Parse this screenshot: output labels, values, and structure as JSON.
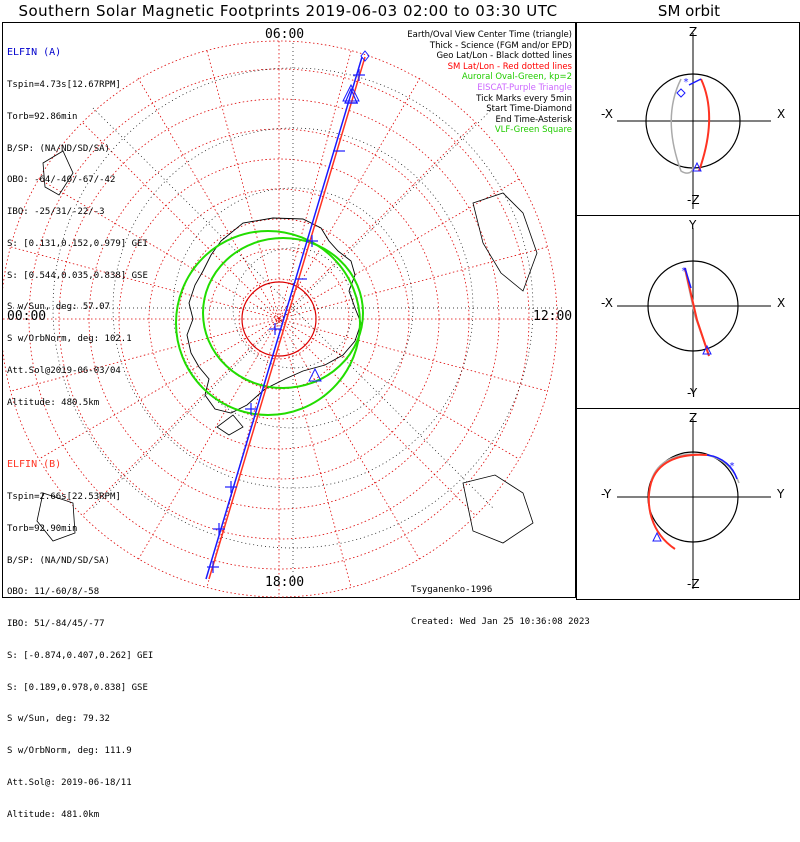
{
  "title": "Southern Solar Magnetic Footprints 2019-06-03 02:00 to 03:30 UTC",
  "sm_orbit_title": "SM orbit",
  "colors": {
    "elfin_a": "#0000cc",
    "elfin_b": "#ff3322",
    "oval": "#22dd00",
    "grid": "#dd0000",
    "purple": "#cc66ff",
    "text": "#000000"
  },
  "polar_labels": {
    "top": "06:00",
    "bottom": "18:00",
    "left": "00:00",
    "right": "12:00"
  },
  "elfin_a": {
    "name": "ELFIN (A)",
    "lines": [
      "Tspin=4.73s[12.67RPM]",
      "Torb=92.86min",
      "B/SP: (NA/ND/SD/SA)",
      "OBO: -64/-40/-67/-42",
      "IBO: -25/31/-22/-3",
      "S: [0.131,0.152,0.979] GEI",
      "S: [0.544,0.035,0.838] GSE",
      "S w/Sun, deg: 57.07",
      "S w/OrbNorm, deg: 102.1",
      "Att.Sol@2019-06-03/04",
      "Altitude: 480.5km"
    ]
  },
  "elfin_b": {
    "name": "ELFIN (B)",
    "lines": [
      "Tspin=2.66s[22.53RPM]",
      "Torb=92.90min",
      "B/SP: (NA/ND/SD/SA)",
      "OBO: 11/-60/8/-58",
      "IBO: 51/-84/45/-77",
      "S: [-0.874,0.407,0.262] GEI",
      "S: [0.189,0.978,0.838] GSE",
      "S w/Sun, deg: 79.32",
      "S w/OrbNorm, deg: 111.9",
      "Att.Sol@: 2019-06-18/11",
      "Altitude: 481.0km"
    ]
  },
  "legend": [
    {
      "text": "Earth/Oval View Center Time (triangle)",
      "color": "#000000"
    },
    {
      "text": "Thick - Science (FGM and/or EPD)",
      "color": "#000000"
    },
    {
      "text": "Geo Lat/Lon - Black dotted lines",
      "color": "#000000"
    },
    {
      "text": "SM Lat/Lon - Red dotted lines",
      "color": "#ff0000"
    },
    {
      "text": "Auroral Oval-Green, kp=2",
      "color": "#22cc00"
    },
    {
      "text": "EISCAT-Purple Triangle",
      "color": "#cc66ff"
    },
    {
      "text": "Tick Marks every 5min",
      "color": "#000000"
    },
    {
      "text": "Start Time-Diamond",
      "color": "#000000"
    },
    {
      "text": "End Time-Asterisk",
      "color": "#000000"
    },
    {
      "text": "VLF-Green Square",
      "color": "#22cc00"
    }
  ],
  "credits": {
    "model": "Tsyganenko-1996",
    "created": "Created: Wed Jan 25 10:36:08 2023"
  },
  "sm_panels": [
    {
      "top": "Z",
      "bottom": "-Z",
      "left": "-X",
      "right": "X"
    },
    {
      "top": "Y",
      "bottom": "-Y",
      "left": "-X",
      "right": "X"
    },
    {
      "top": "Z",
      "bottom": "-Z",
      "left": "-Y",
      "right": "Y"
    }
  ]
}
